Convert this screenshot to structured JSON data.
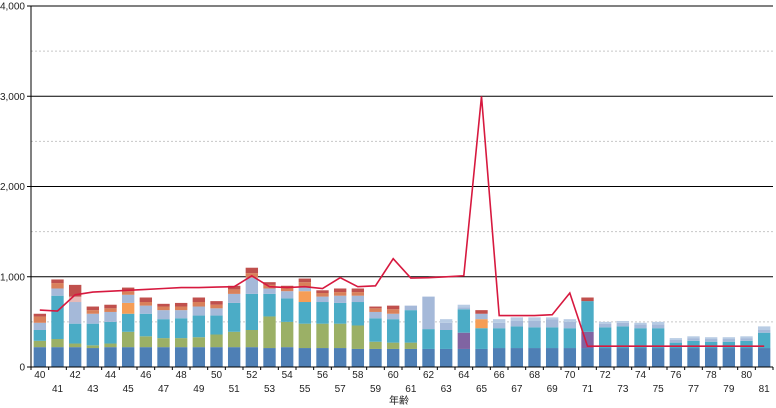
{
  "chart_data": {
    "type": "bar",
    "stacked": true,
    "xlabel": "年齢",
    "ylabel": "",
    "title": "",
    "ylim": [
      0,
      4000
    ],
    "y_ticks": [
      "0",
      "1,000",
      "2,000",
      "3,000",
      "4,000"
    ],
    "y_tick_values": [
      0,
      1000,
      2000,
      3000,
      4000
    ],
    "major_grid": [
      1000,
      2000,
      3000,
      4000
    ],
    "minor_grid": [
      500,
      1500,
      2500,
      3500
    ],
    "categories": [
      "40",
      "41",
      "42",
      "43",
      "44",
      "45",
      "46",
      "47",
      "48",
      "49",
      "50",
      "51",
      "52",
      "53",
      "54",
      "55",
      "56",
      "57",
      "58",
      "59",
      "60",
      "61",
      "62",
      "63",
      "64",
      "65",
      "66",
      "67",
      "68",
      "69",
      "70",
      "71",
      "72",
      "73",
      "74",
      "75",
      "76",
      "77",
      "78",
      "79",
      "80",
      "81"
    ],
    "series": [
      {
        "color": "#4e7fb5",
        "values": [
          220,
          220,
          220,
          210,
          220,
          220,
          220,
          220,
          220,
          220,
          220,
          220,
          220,
          210,
          220,
          210,
          210,
          210,
          200,
          200,
          200,
          200,
          200,
          200,
          200,
          200,
          210,
          210,
          210,
          210,
          210,
          210,
          210,
          210,
          210,
          210,
          210,
          210,
          210,
          210,
          210,
          210
        ]
      },
      {
        "color": "#9bb066",
        "values": [
          70,
          90,
          40,
          30,
          40,
          170,
          120,
          100,
          100,
          110,
          140,
          170,
          190,
          350,
          280,
          270,
          270,
          270,
          260,
          80,
          70,
          70,
          0,
          0,
          0,
          0,
          0,
          0,
          0,
          0,
          0,
          0,
          0,
          0,
          0,
          0,
          0,
          0,
          0,
          0,
          0,
          0
        ]
      },
      {
        "color": "#8064a2",
        "values": [
          0,
          0,
          0,
          0,
          0,
          0,
          0,
          0,
          0,
          0,
          0,
          0,
          0,
          0,
          0,
          0,
          0,
          0,
          0,
          0,
          0,
          0,
          0,
          0,
          180,
          0,
          0,
          0,
          0,
          0,
          0,
          180,
          0,
          0,
          0,
          0,
          0,
          0,
          0,
          0,
          0,
          0
        ]
      },
      {
        "color": "#4bacc6",
        "values": [
          120,
          480,
          220,
          240,
          240,
          200,
          250,
          210,
          220,
          240,
          210,
          320,
          400,
          250,
          260,
          240,
          240,
          230,
          260,
          260,
          260,
          360,
          220,
          210,
          260,
          230,
          220,
          240,
          230,
          230,
          220,
          340,
          230,
          240,
          220,
          220,
          60,
          80,
          70,
          70,
          80,
          170
        ]
      },
      {
        "color": "#f59d56",
        "values": [
          0,
          0,
          0,
          0,
          0,
          120,
          0,
          0,
          0,
          0,
          0,
          0,
          0,
          0,
          0,
          120,
          0,
          0,
          0,
          0,
          0,
          0,
          0,
          0,
          0,
          100,
          0,
          0,
          0,
          0,
          0,
          0,
          0,
          0,
          0,
          0,
          0,
          0,
          0,
          0,
          0,
          0
        ]
      },
      {
        "color": "#a5b9d9",
        "values": [
          80,
          80,
          240,
          110,
          110,
          90,
          90,
          100,
          90,
          100,
          80,
          100,
          180,
          60,
          80,
          50,
          60,
          80,
          70,
          70,
          60,
          50,
          360,
          80,
          20,
          60,
          60,
          60,
          70,
          90,
          70,
          0,
          40,
          40,
          40,
          40,
          30,
          30,
          30,
          30,
          30,
          30
        ]
      },
      {
        "color": "#d9805a",
        "values": [
          70,
          60,
          0,
          40,
          40,
          40,
          40,
          40,
          40,
          50,
          40,
          50,
          50,
          40,
          40,
          50,
          40,
          40,
          40,
          40,
          50,
          0,
          0,
          0,
          0,
          0,
          0,
          0,
          0,
          0,
          0,
          0,
          0,
          0,
          0,
          0,
          0,
          0,
          0,
          0,
          0,
          0
        ]
      },
      {
        "color": "#e6b9b8",
        "values": [
          0,
          0,
          60,
          0,
          0,
          0,
          0,
          0,
          0,
          0,
          0,
          0,
          0,
          0,
          0,
          0,
          0,
          0,
          0,
          0,
          0,
          0,
          0,
          0,
          0,
          0,
          0,
          0,
          0,
          0,
          0,
          0,
          0,
          0,
          0,
          0,
          0,
          0,
          0,
          0,
          0,
          0
        ]
      },
      {
        "color": "#b8cce4",
        "values": [
          0,
          0,
          0,
          0,
          0,
          0,
          0,
          0,
          0,
          0,
          0,
          0,
          0,
          0,
          0,
          0,
          0,
          0,
          0,
          0,
          0,
          0,
          0,
          40,
          30,
          0,
          40,
          40,
          40,
          20,
          30,
          0,
          20,
          20,
          20,
          30,
          20,
          20,
          20,
          20,
          20,
          40
        ]
      },
      {
        "color": "#c0504d",
        "values": [
          30,
          40,
          130,
          40,
          40,
          40,
          50,
          30,
          40,
          50,
          40,
          40,
          60,
          30,
          20,
          40,
          30,
          40,
          40,
          20,
          40,
          0,
          0,
          0,
          0,
          40,
          0,
          0,
          0,
          0,
          0,
          40,
          0,
          0,
          0,
          0,
          0,
          0,
          0,
          0,
          0,
          0
        ]
      }
    ],
    "line": {
      "color": "#d7193f",
      "values": [
        630,
        620,
        800,
        830,
        840,
        850,
        860,
        870,
        880,
        880,
        885,
        890,
        1010,
        890,
        880,
        890,
        870,
        990,
        890,
        900,
        1200,
        985,
        990,
        1000,
        1010,
        3000,
        570,
        570,
        570,
        580,
        820,
        230,
        230,
        230,
        230,
        230,
        230,
        230,
        230,
        230,
        230,
        230
      ]
    }
  }
}
